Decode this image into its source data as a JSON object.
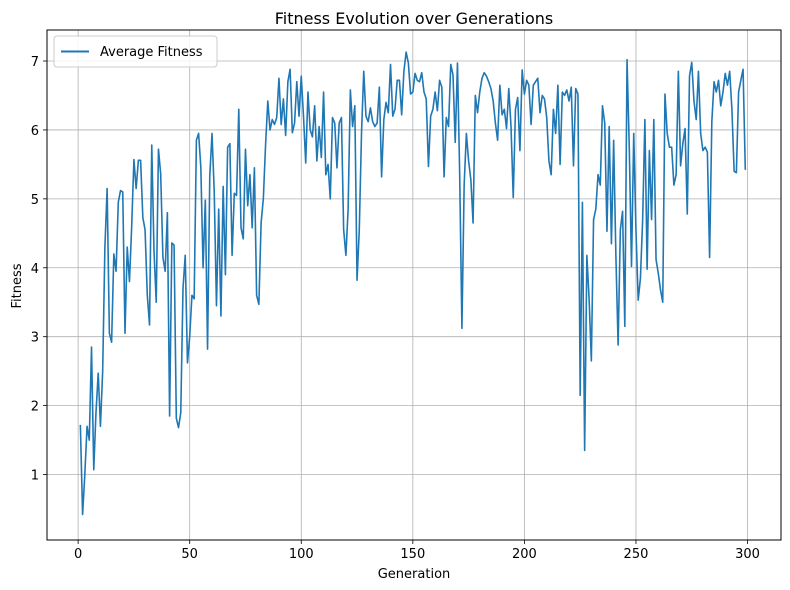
{
  "chart_data": {
    "type": "line",
    "title": "Fitness Evolution over Generations",
    "xlabel": "Generation",
    "ylabel": "Fitness",
    "xlim": [
      -13.95,
      315
    ],
    "ylim": [
      0.05,
      7.45
    ],
    "xticks": [
      0,
      50,
      100,
      150,
      200,
      250,
      300
    ],
    "yticks": [
      1,
      2,
      3,
      4,
      5,
      6,
      7
    ],
    "grid": true,
    "legend_position": "top-left",
    "series": [
      {
        "name": "Average Fitness",
        "color": "#1f77b4",
        "x_start": 1,
        "x_step": 1,
        "values": [
          1.72,
          0.42,
          1.0,
          1.7,
          1.5,
          2.85,
          1.07,
          1.9,
          2.47,
          1.7,
          2.5,
          4.3,
          5.15,
          3.05,
          2.92,
          4.2,
          3.95,
          4.95,
          5.12,
          5.1,
          3.05,
          4.3,
          3.8,
          4.6,
          5.57,
          5.15,
          5.56,
          5.56,
          4.73,
          4.55,
          3.6,
          3.17,
          5.78,
          4.25,
          3.5,
          5.72,
          5.36,
          4.15,
          3.95,
          4.8,
          1.85,
          4.36,
          4.33,
          1.82,
          1.68,
          1.9,
          3.7,
          4.18,
          2.62,
          3.0,
          3.6,
          3.55,
          5.85,
          5.95,
          5.45,
          4.0,
          4.98,
          2.82,
          5.33,
          5.95,
          5.1,
          3.45,
          4.85,
          3.3,
          5.18,
          3.9,
          5.75,
          5.8,
          4.18,
          5.08,
          5.05,
          6.3,
          4.58,
          4.42,
          5.72,
          4.9,
          5.35,
          4.58,
          5.45,
          3.6,
          3.47,
          4.65,
          5.0,
          5.78,
          6.42,
          6.0,
          6.15,
          6.08,
          6.18,
          6.75,
          6.08,
          6.45,
          5.92,
          6.7,
          6.88,
          5.96,
          6.1,
          6.7,
          6.2,
          6.78,
          6.2,
          5.52,
          6.55,
          6.0,
          5.9,
          6.35,
          5.55,
          6.05,
          5.6,
          6.55,
          5.35,
          5.5,
          5.0,
          6.18,
          6.1,
          5.45,
          6.1,
          6.18,
          4.55,
          4.18,
          4.85,
          6.58,
          6.05,
          6.35,
          3.82,
          4.55,
          5.95,
          6.85,
          6.2,
          6.12,
          6.32,
          6.12,
          6.05,
          6.1,
          6.62,
          5.32,
          6.15,
          6.4,
          6.25,
          6.95,
          6.2,
          6.3,
          6.72,
          6.72,
          6.22,
          6.85,
          7.13,
          6.97,
          6.52,
          6.55,
          6.82,
          6.72,
          6.7,
          6.83,
          6.55,
          6.45,
          5.47,
          6.2,
          6.3,
          6.55,
          6.28,
          6.72,
          6.62,
          5.32,
          6.18,
          6.05,
          6.95,
          6.8,
          5.82,
          6.97,
          5.35,
          3.12,
          5.2,
          5.95,
          5.55,
          5.28,
          4.65,
          6.5,
          6.25,
          6.55,
          6.75,
          6.83,
          6.78,
          6.7,
          6.6,
          6.42,
          6.1,
          5.85,
          6.65,
          6.22,
          6.3,
          6.02,
          6.6,
          6.05,
          5.02,
          6.3,
          6.47,
          5.7,
          6.87,
          6.52,
          6.72,
          6.65,
          6.08,
          6.65,
          6.7,
          6.75,
          6.25,
          6.5,
          6.45,
          6.18,
          5.55,
          5.35,
          6.3,
          5.95,
          6.65,
          5.5,
          6.55,
          6.5,
          6.58,
          6.42,
          6.62,
          5.48,
          6.6,
          6.52,
          2.15,
          4.95,
          1.35,
          4.18,
          3.55,
          2.65,
          4.7,
          4.85,
          5.35,
          5.2,
          6.35,
          6.1,
          4.53,
          6.05,
          4.35,
          5.85,
          4.18,
          2.88,
          4.55,
          4.82,
          3.15,
          7.02,
          5.75,
          4.02,
          5.95,
          4.55,
          3.53,
          3.85,
          4.7,
          6.15,
          3.98,
          5.7,
          4.7,
          6.15,
          4.12,
          3.92,
          3.68,
          3.5,
          6.52,
          5.95,
          5.75,
          5.75,
          5.2,
          5.35,
          6.85,
          5.48,
          5.8,
          6.02,
          4.78,
          6.78,
          6.98,
          6.42,
          6.15,
          6.85,
          5.95,
          5.7,
          5.75,
          5.68,
          4.15,
          6.12,
          6.7,
          6.55,
          6.72,
          6.35,
          6.55,
          6.82,
          6.65,
          6.85,
          6.3,
          5.4,
          5.38,
          6.55,
          6.72,
          6.88,
          5.42
        ]
      }
    ]
  }
}
